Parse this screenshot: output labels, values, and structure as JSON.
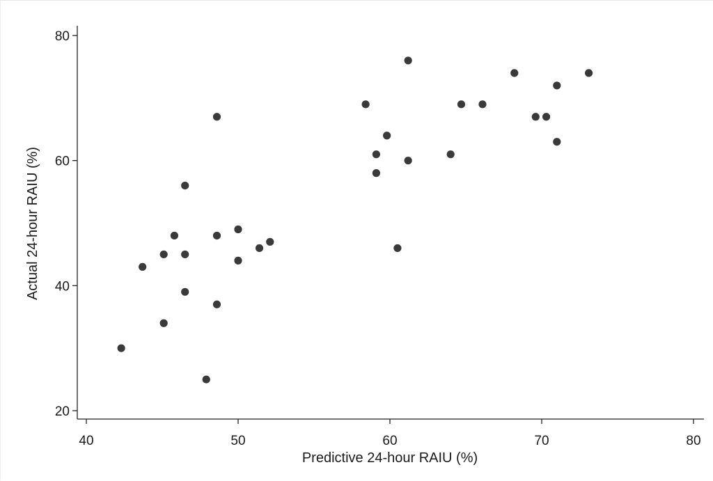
{
  "chart_data": {
    "type": "scatter",
    "title": "",
    "xlabel": "Predictive 24-hour RAIU (%)",
    "ylabel": "Actual 24-hour RAIU (%)",
    "xlim": [
      40,
      80
    ],
    "ylim": [
      20,
      80
    ],
    "xticks": [
      40,
      50,
      60,
      70,
      80
    ],
    "yticks": [
      20,
      40,
      60,
      80
    ],
    "xtick_labels": [
      "40",
      "50",
      "60",
      "70",
      "80"
    ],
    "ytick_labels": [
      "20",
      "40",
      "60",
      "80"
    ],
    "grid": false,
    "marker_color": "#3a3a3a",
    "series": [
      {
        "points": [
          {
            "x": 42.3,
            "y": 30
          },
          {
            "x": 43.7,
            "y": 43
          },
          {
            "x": 45.1,
            "y": 45
          },
          {
            "x": 45.1,
            "y": 34
          },
          {
            "x": 45.8,
            "y": 48
          },
          {
            "x": 46.5,
            "y": 56
          },
          {
            "x": 46.5,
            "y": 45
          },
          {
            "x": 46.5,
            "y": 39
          },
          {
            "x": 47.9,
            "y": 25
          },
          {
            "x": 48.6,
            "y": 67
          },
          {
            "x": 48.6,
            "y": 48
          },
          {
            "x": 48.6,
            "y": 37
          },
          {
            "x": 50.0,
            "y": 49
          },
          {
            "x": 50.0,
            "y": 44
          },
          {
            "x": 51.4,
            "y": 46
          },
          {
            "x": 52.1,
            "y": 47
          },
          {
            "x": 58.4,
            "y": 69
          },
          {
            "x": 59.1,
            "y": 61
          },
          {
            "x": 59.1,
            "y": 58
          },
          {
            "x": 59.8,
            "y": 64
          },
          {
            "x": 60.5,
            "y": 46
          },
          {
            "x": 61.2,
            "y": 76
          },
          {
            "x": 61.2,
            "y": 60
          },
          {
            "x": 64.0,
            "y": 61
          },
          {
            "x": 64.7,
            "y": 69
          },
          {
            "x": 66.1,
            "y": 69
          },
          {
            "x": 68.2,
            "y": 74
          },
          {
            "x": 69.6,
            "y": 67
          },
          {
            "x": 70.3,
            "y": 67
          },
          {
            "x": 71.0,
            "y": 72
          },
          {
            "x": 71.0,
            "y": 63
          },
          {
            "x": 73.1,
            "y": 74
          }
        ]
      }
    ]
  }
}
